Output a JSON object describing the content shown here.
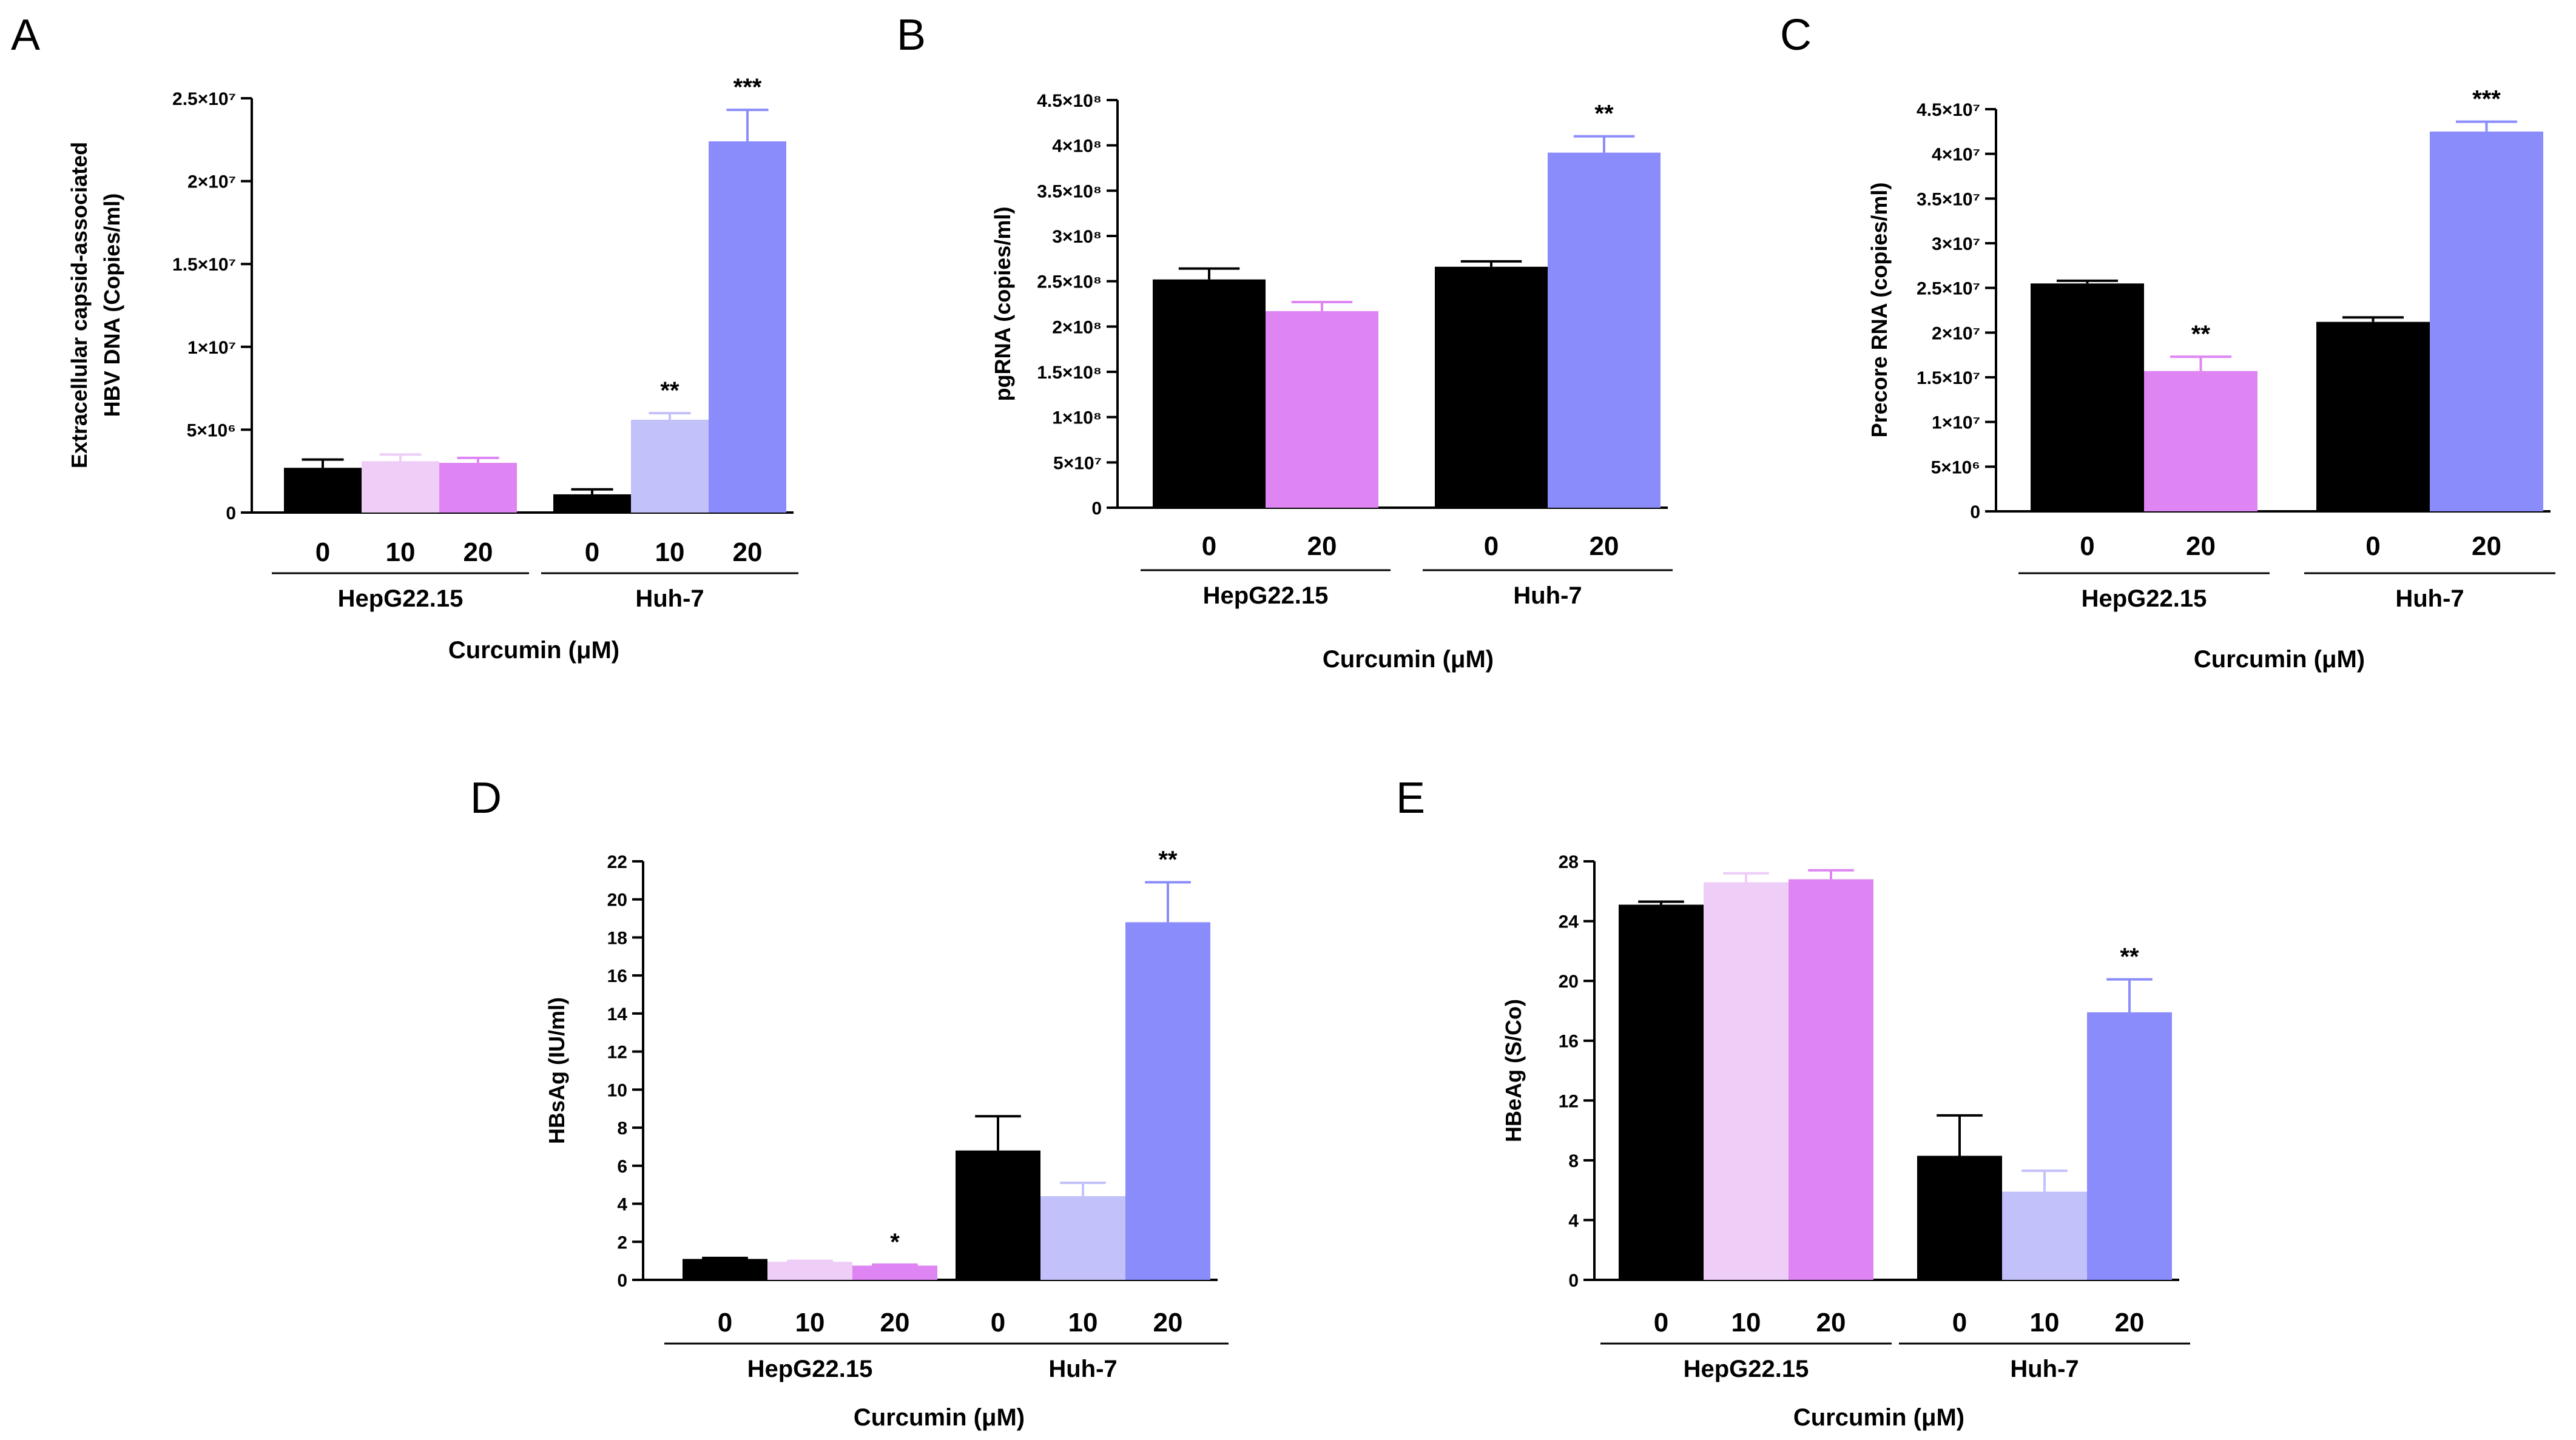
{
  "figure": {
    "charts": [
      {
        "panel": "A",
        "type": "bar",
        "ylabel_lines": [
          "Extracellular capsid-associated",
          "HBV DNA (Copies/ml)"
        ],
        "xlabel": "Curcumin (μM)",
        "ylim": [
          0,
          25000000
        ],
        "yticks": [
          0,
          5000000,
          10000000,
          15000000,
          20000000,
          25000000
        ],
        "ytick_labels": [
          "0",
          "5×10⁶",
          "1×10⁷",
          "1.5×10⁷",
          "2×10⁷",
          "2.5×10⁷"
        ],
        "groups": [
          {
            "name": "HepG22.15",
            "bars": [
              {
                "label": "0",
                "value": 2700000,
                "error": 500000,
                "color": "#000000",
                "sig": ""
              },
              {
                "label": "10",
                "value": 3100000,
                "error": 400000,
                "color": "#eecdf7",
                "sig": ""
              },
              {
                "label": "20",
                "value": 3000000,
                "error": 300000,
                "color": "#de85f3",
                "sig": ""
              }
            ]
          },
          {
            "name": "Huh-7",
            "bars": [
              {
                "label": "0",
                "value": 1100000,
                "error": 300000,
                "color": "#000000",
                "sig": ""
              },
              {
                "label": "10",
                "value": 5600000,
                "error": 400000,
                "color": "#c2c1fa",
                "sig": "**"
              },
              {
                "label": "20",
                "value": 22400000,
                "error": 1900000,
                "color": "#8b8cfb",
                "sig": "***"
              }
            ]
          }
        ]
      },
      {
        "panel": "B",
        "type": "bar",
        "ylabel_lines": [
          "pgRNA (copies/ml)"
        ],
        "xlabel": "Curcumin (μM)",
        "ylim": [
          0,
          450000000
        ],
        "yticks": [
          0,
          50000000,
          100000000,
          150000000,
          200000000,
          250000000,
          300000000,
          350000000,
          400000000,
          450000000
        ],
        "ytick_labels": [
          "0",
          "5×10⁷",
          "1×10⁸",
          "1.5×10⁸",
          "2×10⁸",
          "2.5×10⁸",
          "3×10⁸",
          "3.5×10⁸",
          "4×10⁸",
          "4.5×10⁸"
        ],
        "groups": [
          {
            "name": "HepG22.15",
            "bars": [
              {
                "label": "0",
                "value": 252000000,
                "error": 12000000,
                "color": "#000000",
                "sig": ""
              },
              {
                "label": "20",
                "value": 217000000,
                "error": 10000000,
                "color": "#de85f3",
                "sig": ""
              }
            ]
          },
          {
            "name": "Huh-7",
            "bars": [
              {
                "label": "0",
                "value": 266000000,
                "error": 6000000,
                "color": "#000000",
                "sig": ""
              },
              {
                "label": "20",
                "value": 392000000,
                "error": 18000000,
                "color": "#8b8cfb",
                "sig": "**"
              }
            ]
          }
        ]
      },
      {
        "panel": "C",
        "type": "bar",
        "ylabel_lines": [
          "Precore RNA (copies/ml)"
        ],
        "xlabel": "Curcumin (μM)",
        "ylim": [
          0,
          45000000
        ],
        "yticks": [
          0,
          5000000,
          10000000,
          15000000,
          20000000,
          25000000,
          30000000,
          35000000,
          40000000,
          45000000
        ],
        "ytick_labels": [
          "0",
          "5×10⁶",
          "1×10⁷",
          "1.5×10⁷",
          "2×10⁷",
          "2.5×10⁷",
          "3×10⁷",
          "3.5×10⁷",
          "4×10⁷",
          "4.5×10⁷"
        ],
        "groups": [
          {
            "name": "HepG22.15",
            "bars": [
              {
                "label": "0",
                "value": 25500000,
                "error": 300000,
                "color": "#000000",
                "sig": ""
              },
              {
                "label": "20",
                "value": 15700000,
                "error": 1600000,
                "color": "#de85f3",
                "sig": "**"
              }
            ]
          },
          {
            "name": "Huh-7",
            "bars": [
              {
                "label": "0",
                "value": 21200000,
                "error": 500000,
                "color": "#000000",
                "sig": ""
              },
              {
                "label": "20",
                "value": 42500000,
                "error": 1100000,
                "color": "#8b8cfb",
                "sig": "***"
              }
            ]
          }
        ]
      },
      {
        "panel": "D",
        "type": "bar",
        "ylabel_lines": [
          "HBsAg (IU/ml)"
        ],
        "xlabel": "Curcumin (μM)",
        "ylim": [
          0,
          22
        ],
        "yticks": [
          0,
          2,
          4,
          6,
          8,
          10,
          12,
          14,
          16,
          18,
          20,
          22
        ],
        "ytick_labels": [
          "0",
          "2",
          "4",
          "6",
          "8",
          "10",
          "12",
          "14",
          "16",
          "18",
          "20",
          "22"
        ],
        "groups": [
          {
            "name": "HepG22.15",
            "bars": [
              {
                "label": "0",
                "value": 1.1,
                "error": 0.05,
                "color": "#000000",
                "sig": ""
              },
              {
                "label": "10",
                "value": 0.95,
                "error": 0.05,
                "color": "#eecdf7",
                "sig": ""
              },
              {
                "label": "20",
                "value": 0.75,
                "error": 0.05,
                "color": "#de85f3",
                "sig": "*"
              }
            ]
          },
          {
            "name": "Huh-7",
            "bars": [
              {
                "label": "0",
                "value": 6.8,
                "error": 1.8,
                "color": "#000000",
                "sig": ""
              },
              {
                "label": "10",
                "value": 4.4,
                "error": 0.7,
                "color": "#c2c1fa",
                "sig": ""
              },
              {
                "label": "20",
                "value": 18.8,
                "error": 2.1,
                "color": "#8b8cfb",
                "sig": "**"
              }
            ]
          }
        ]
      },
      {
        "panel": "E",
        "type": "bar",
        "ylabel_lines": [
          "HBeAg (S/Co)"
        ],
        "xlabel": "Curcumin (μM)",
        "ylim": [
          0,
          28
        ],
        "yticks": [
          0,
          4,
          8,
          12,
          16,
          20,
          24,
          28
        ],
        "ytick_labels": [
          "0",
          "4",
          "8",
          "12",
          "16",
          "20",
          "24",
          "28"
        ],
        "groups": [
          {
            "name": "HepG22.15",
            "bars": [
              {
                "label": "0",
                "value": 25.1,
                "error": 0.2,
                "color": "#000000",
                "sig": ""
              },
              {
                "label": "10",
                "value": 26.6,
                "error": 0.6,
                "color": "#eecdf7",
                "sig": ""
              },
              {
                "label": "20",
                "value": 26.8,
                "error": 0.6,
                "color": "#de85f3",
                "sig": ""
              }
            ]
          },
          {
            "name": "Huh-7",
            "bars": [
              {
                "label": "0",
                "value": 8.3,
                "error": 2.7,
                "color": "#000000",
                "sig": ""
              },
              {
                "label": "10",
                "value": 5.9,
                "error": 1.4,
                "color": "#c2c1fa",
                "sig": ""
              },
              {
                "label": "20",
                "value": 17.9,
                "error": 2.2,
                "color": "#8b8cfb",
                "sig": "**"
              }
            ]
          }
        ]
      }
    ]
  }
}
